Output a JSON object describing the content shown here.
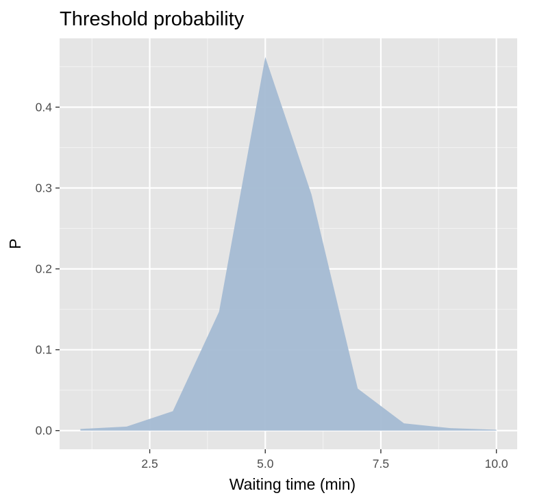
{
  "chart_data": {
    "type": "area",
    "title": "Threshold probability",
    "xlabel": "Waiting time (min)",
    "ylabel": "P",
    "x": [
      1,
      2,
      3,
      4,
      5,
      6,
      7,
      8,
      9,
      10
    ],
    "series": [
      {
        "values": [
          0.002,
          0.005,
          0.024,
          0.147,
          0.462,
          0.292,
          0.052,
          0.009,
          0.003,
          0.001
        ]
      }
    ],
    "xlim": [
      0.55,
      10.45
    ],
    "ylim": [
      -0.0231,
      0.4851
    ],
    "x_ticks": [
      2.5,
      5.0,
      7.5,
      10.0
    ],
    "x_tick_labels": [
      "2.5",
      "5.0",
      "7.5",
      "10.0"
    ],
    "x_minor_ticks": [
      1.25,
      3.75,
      6.25,
      8.75
    ],
    "y_ticks": [
      0.0,
      0.1,
      0.2,
      0.3,
      0.4
    ],
    "y_tick_labels": [
      "0.0",
      "0.1",
      "0.2",
      "0.3",
      "0.4"
    ],
    "y_minor_ticks": [
      0.05,
      0.15,
      0.25,
      0.35,
      0.45
    ],
    "grid": true,
    "legend": "none",
    "colors": {
      "panel_background": "#e5e5e5",
      "grid_major": "#ffffff",
      "grid_minor": "#f2f2f2",
      "area_fill": "#a4bad3",
      "tick_text": "#4d4d4d",
      "tick_mark": "#333333"
    }
  }
}
